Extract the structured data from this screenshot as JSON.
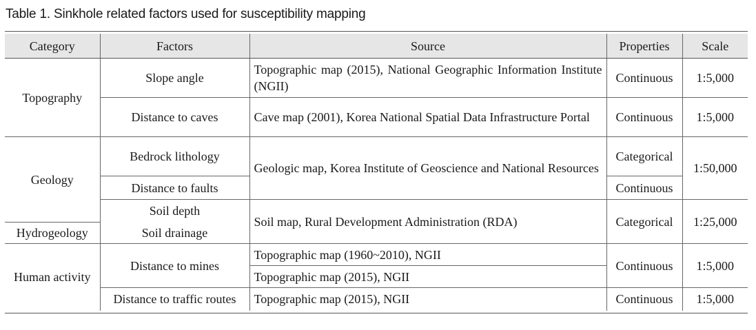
{
  "caption": "Table 1.  Sinkhole related factors used for susceptibility mapping",
  "headers": {
    "category": "Category",
    "factors": "Factors",
    "source": "Source",
    "properties": "Properties",
    "scale": "Scale"
  },
  "cells": {
    "topography": "Topography",
    "geology": "Geology",
    "hydrogeology": "Hydrogeology",
    "human_activity": "Human activity",
    "slope_angle": "Slope angle",
    "distance_caves": "Distance to caves",
    "bedrock_lithology": "Bedrock lithology",
    "distance_faults": "Distance to faults",
    "soil_depth": "Soil depth",
    "soil_drainage": "Soil drainage",
    "distance_mines": "Distance to mines",
    "distance_traffic": "Distance to traffic routes",
    "src_slope": "Topographic map (2015), National Geographic Information Institute (NGII)",
    "src_caves": "Cave map (2001), Korea National Spatial Data Infrastructure Portal",
    "src_geologic": "Geologic map, Korea Institute of Geoscience and National Resources",
    "src_soil": "Soil map, Rural Development Administration (RDA)",
    "src_mines_1": "Topographic map (1960~2010), NGII",
    "src_mines_2": "Topographic map (2015), NGII",
    "src_traffic": "Topographic map (2015), NGII",
    "prop_slope": "Continuous",
    "prop_caves": "Continuous",
    "prop_bedrock": "Categorical",
    "prop_faults": "Continuous",
    "prop_soil": "Categorical",
    "prop_mines": "Continuous",
    "prop_traffic": "Continuous",
    "scale_slope": "1:5,000",
    "scale_caves": "1:5,000",
    "scale_geology": "1:50,000",
    "scale_soil": "1:25,000",
    "scale_mines": "1:5,000",
    "scale_traffic": "1:5,000"
  }
}
